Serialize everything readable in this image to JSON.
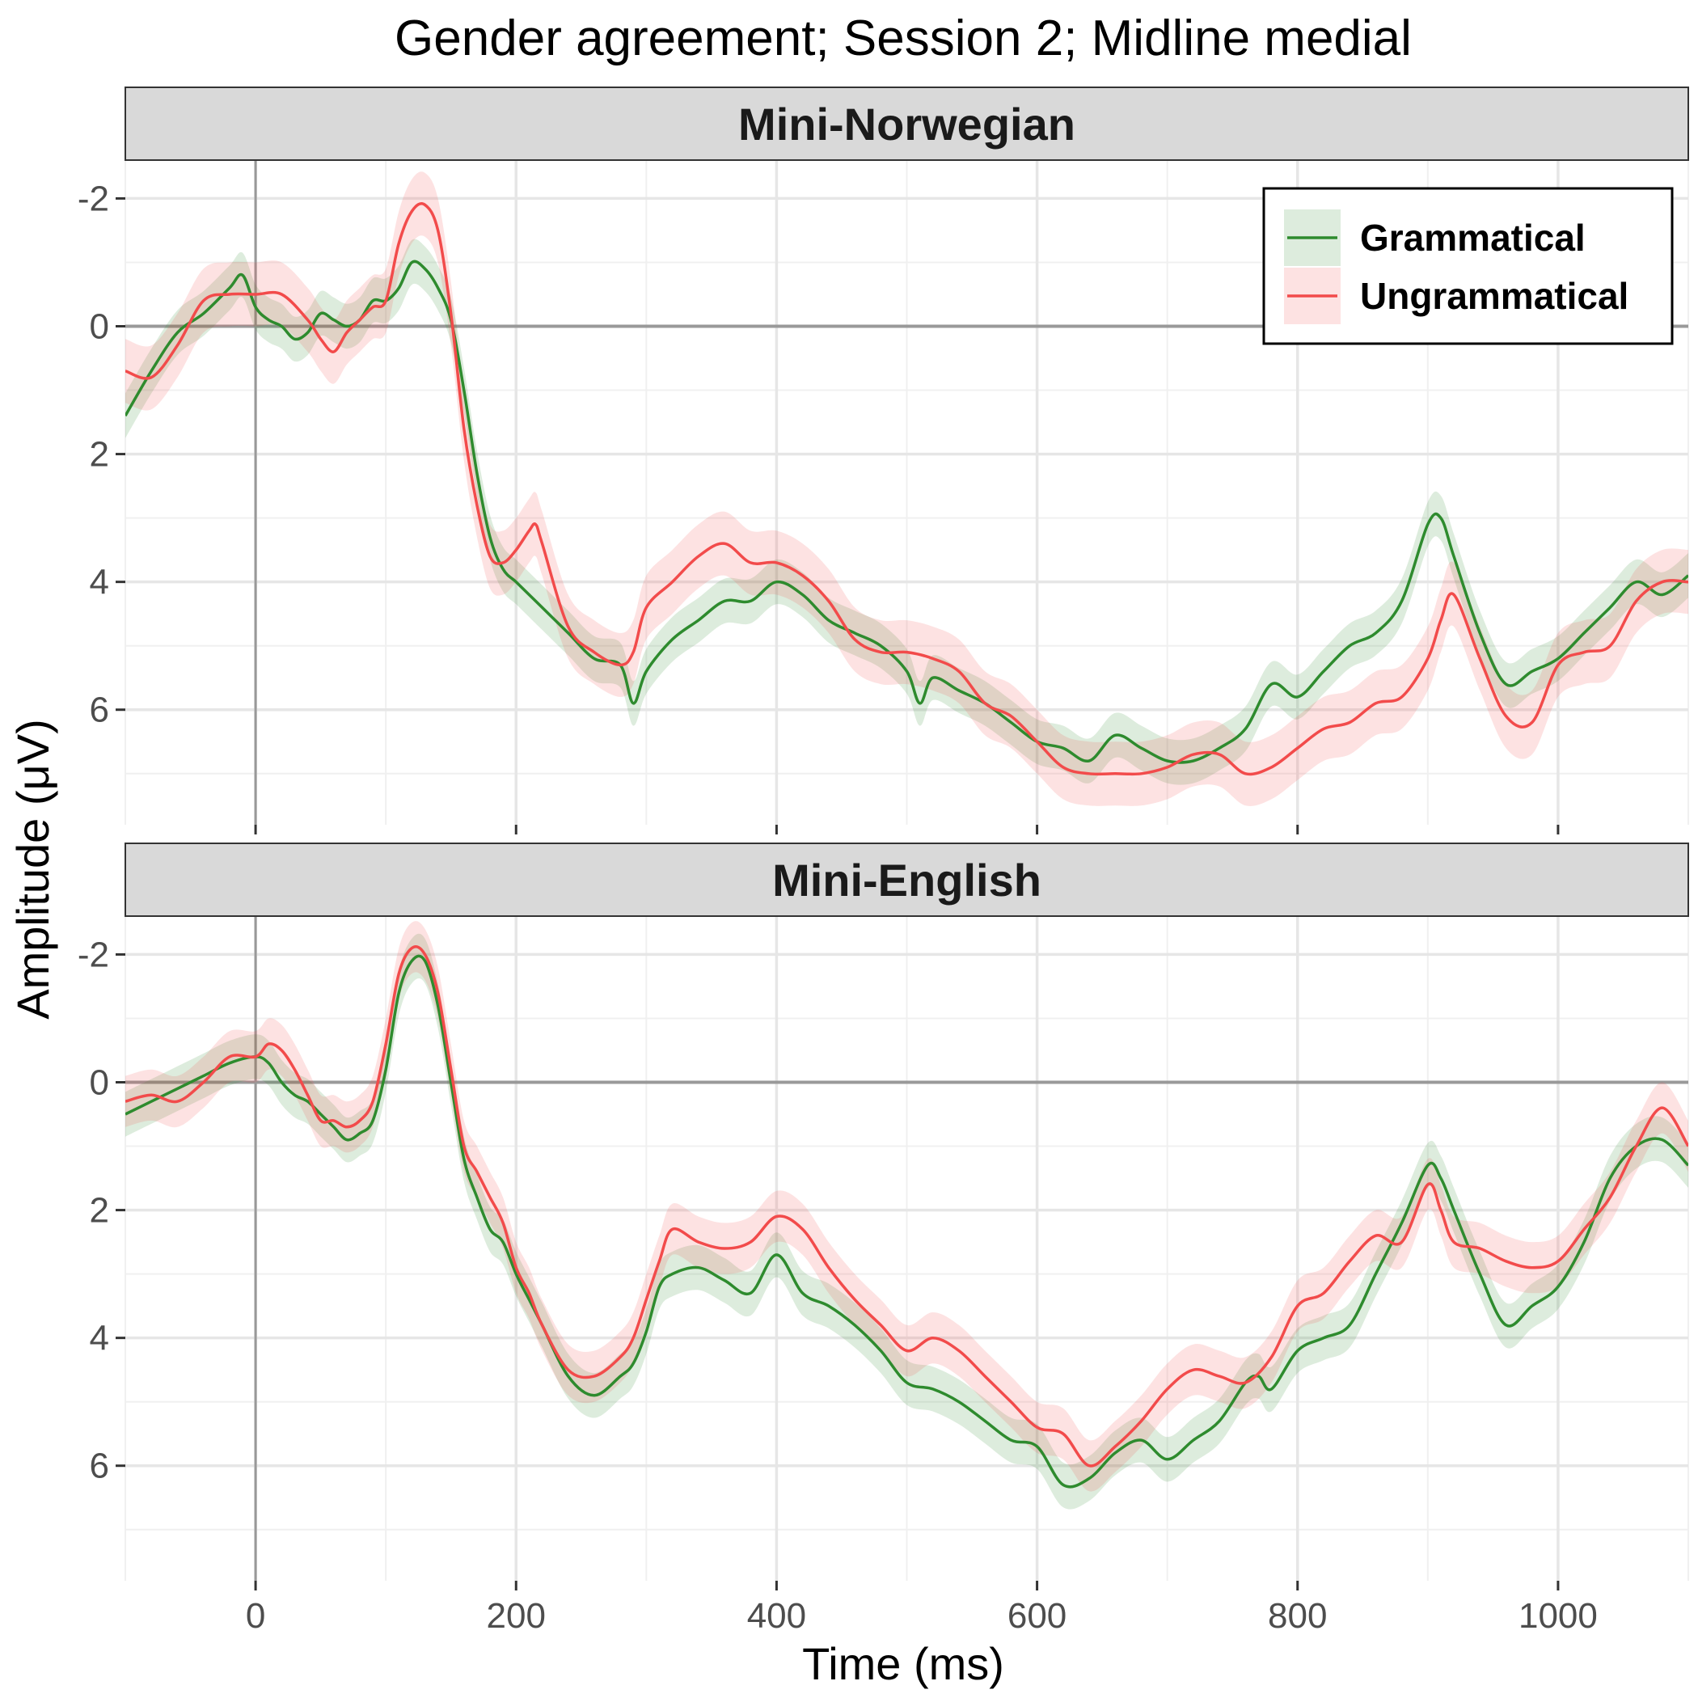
{
  "chart_data": {
    "type": "line",
    "title": "Gender agreement; Session 2; Midline medial",
    "xlabel": "Time (ms)",
    "ylabel": "Amplitude (μV)",
    "xlim": [
      -100,
      1100
    ],
    "ylim": [
      -2.6,
      7.8
    ],
    "y_reversed": true,
    "x_ticks": [
      0,
      200,
      400,
      600,
      800,
      1000
    ],
    "y_ticks": [
      -2,
      0,
      2,
      4,
      6
    ],
    "x_tick_labels": [
      "0",
      "200",
      "400",
      "600",
      "800",
      "1000"
    ],
    "y_tick_labels": [
      "-2",
      "0",
      "2",
      "4",
      "6"
    ],
    "grid": true,
    "legend": {
      "position": "top-right",
      "entries": [
        "Grammatical",
        "Ungrammatical"
      ]
    },
    "colors": {
      "Grammatical": "#2e8b2e",
      "Ungrammatical": "#f24b4b"
    },
    "panels": [
      {
        "label": "Mini-Norwegian",
        "series": [
          {
            "name": "Grammatical",
            "x": [
              -100,
              -80,
              -60,
              -40,
              -20,
              -10,
              0,
              10,
              20,
              30,
              40,
              50,
              60,
              70,
              80,
              90,
              100,
              110,
              120,
              130,
              140,
              150,
              160,
              170,
              180,
              190,
              200,
              210,
              220,
              240,
              260,
              280,
              290,
              300,
              320,
              340,
              360,
              380,
              400,
              420,
              440,
              460,
              480,
              500,
              510,
              520,
              540,
              560,
              580,
              600,
              620,
              640,
              660,
              680,
              700,
              720,
              740,
              760,
              780,
              800,
              820,
              840,
              860,
              880,
              900,
              910,
              920,
              940,
              960,
              980,
              1000,
              1020,
              1040,
              1060,
              1080,
              1100
            ],
            "y": [
              1.4,
              0.7,
              0.1,
              -0.2,
              -0.6,
              -0.8,
              -0.3,
              -0.1,
              0.0,
              0.2,
              0.1,
              -0.2,
              -0.1,
              0.0,
              -0.1,
              -0.4,
              -0.4,
              -0.6,
              -1.0,
              -0.9,
              -0.6,
              -0.1,
              1.0,
              2.3,
              3.3,
              3.8,
              4.0,
              4.2,
              4.4,
              4.8,
              5.2,
              5.3,
              5.9,
              5.4,
              4.9,
              4.6,
              4.3,
              4.3,
              4.0,
              4.2,
              4.6,
              4.8,
              5.0,
              5.4,
              5.9,
              5.5,
              5.7,
              5.9,
              6.2,
              6.5,
              6.6,
              6.8,
              6.4,
              6.6,
              6.8,
              6.8,
              6.6,
              6.3,
              5.6,
              5.8,
              5.4,
              5.0,
              4.8,
              4.3,
              3.1,
              3.0,
              3.6,
              4.8,
              5.6,
              5.4,
              5.2,
              4.8,
              4.4,
              4.0,
              4.2,
              3.9
            ],
            "ci": 0.35
          },
          {
            "name": "Ungrammatical",
            "x": [
              -100,
              -80,
              -60,
              -40,
              -20,
              0,
              20,
              40,
              50,
              60,
              70,
              80,
              90,
              100,
              110,
              120,
              130,
              140,
              150,
              160,
              170,
              180,
              190,
              200,
              210,
              215,
              220,
              240,
              260,
              280,
              290,
              300,
              320,
              340,
              360,
              380,
              400,
              420,
              440,
              460,
              480,
              500,
              520,
              540,
              560,
              580,
              600,
              620,
              640,
              660,
              680,
              700,
              720,
              740,
              760,
              780,
              800,
              820,
              840,
              860,
              880,
              900,
              910,
              920,
              940,
              960,
              980,
              1000,
              1020,
              1040,
              1060,
              1080,
              1100
            ],
            "y": [
              0.7,
              0.8,
              0.3,
              -0.4,
              -0.5,
              -0.5,
              -0.5,
              -0.1,
              0.2,
              0.4,
              0.1,
              -0.1,
              -0.3,
              -0.4,
              -1.3,
              -1.8,
              -1.9,
              -1.5,
              -0.2,
              1.6,
              2.8,
              3.6,
              3.7,
              3.5,
              3.2,
              3.1,
              3.4,
              4.7,
              5.1,
              5.3,
              5.1,
              4.4,
              4.0,
              3.6,
              3.4,
              3.7,
              3.7,
              3.9,
              4.3,
              4.9,
              5.1,
              5.1,
              5.2,
              5.4,
              5.9,
              6.1,
              6.5,
              6.9,
              7.0,
              7.0,
              7.0,
              6.9,
              6.7,
              6.7,
              7.0,
              6.9,
              6.6,
              6.3,
              6.2,
              5.9,
              5.8,
              5.2,
              4.6,
              4.2,
              5.2,
              6.1,
              6.2,
              5.3,
              5.1,
              5.0,
              4.3,
              4.0,
              4.0
            ],
            "ci": 0.5
          }
        ]
      },
      {
        "label": "Mini-English",
        "series": [
          {
            "name": "Grammatical",
            "x": [
              -100,
              -80,
              -60,
              -40,
              -20,
              0,
              10,
              20,
              30,
              40,
              50,
              60,
              70,
              80,
              90,
              100,
              110,
              120,
              130,
              140,
              150,
              160,
              170,
              180,
              190,
              200,
              210,
              220,
              240,
              260,
              280,
              290,
              300,
              310,
              320,
              340,
              360,
              380,
              400,
              420,
              440,
              460,
              480,
              500,
              520,
              540,
              560,
              580,
              600,
              620,
              640,
              660,
              680,
              700,
              720,
              740,
              760,
              770,
              780,
              800,
              820,
              840,
              860,
              880,
              900,
              910,
              920,
              940,
              960,
              980,
              1000,
              1020,
              1040,
              1060,
              1080,
              1100
            ],
            "y": [
              0.5,
              0.3,
              0.1,
              -0.1,
              -0.3,
              -0.4,
              -0.3,
              0.0,
              0.2,
              0.3,
              0.5,
              0.7,
              0.9,
              0.8,
              0.6,
              -0.2,
              -1.4,
              -1.9,
              -1.9,
              -1.2,
              0.0,
              1.2,
              1.8,
              2.3,
              2.5,
              3.0,
              3.4,
              3.8,
              4.6,
              4.9,
              4.6,
              4.4,
              3.9,
              3.2,
              3.0,
              2.9,
              3.1,
              3.3,
              2.7,
              3.3,
              3.5,
              3.8,
              4.2,
              4.7,
              4.8,
              5.0,
              5.3,
              5.6,
              5.7,
              6.3,
              6.2,
              5.8,
              5.6,
              5.9,
              5.6,
              5.3,
              4.7,
              4.6,
              4.8,
              4.2,
              4.0,
              3.8,
              3.0,
              2.2,
              1.3,
              1.5,
              2.0,
              3.0,
              3.8,
              3.5,
              3.2,
              2.5,
              1.5,
              1.0,
              0.9,
              1.3
            ],
            "ci": 0.35
          },
          {
            "name": "Ungrammatical",
            "x": [
              -100,
              -80,
              -60,
              -40,
              -20,
              0,
              10,
              20,
              30,
              40,
              50,
              60,
              70,
              80,
              90,
              100,
              110,
              120,
              130,
              140,
              150,
              160,
              170,
              180,
              190,
              200,
              210,
              220,
              240,
              260,
              280,
              290,
              300,
              310,
              320,
              340,
              360,
              380,
              400,
              420,
              440,
              460,
              480,
              500,
              520,
              540,
              560,
              580,
              600,
              620,
              640,
              660,
              680,
              700,
              720,
              740,
              760,
              780,
              800,
              820,
              840,
              860,
              880,
              900,
              910,
              920,
              940,
              960,
              980,
              1000,
              1020,
              1040,
              1060,
              1080,
              1100
            ],
            "y": [
              0.3,
              0.2,
              0.3,
              0.0,
              -0.4,
              -0.4,
              -0.6,
              -0.5,
              -0.2,
              0.2,
              0.6,
              0.6,
              0.7,
              0.6,
              0.3,
              -0.6,
              -1.7,
              -2.1,
              -2.0,
              -1.4,
              -0.2,
              1.0,
              1.4,
              1.8,
              2.2,
              2.9,
              3.3,
              3.8,
              4.5,
              4.6,
              4.3,
              4.0,
              3.4,
              2.8,
              2.3,
              2.5,
              2.6,
              2.5,
              2.1,
              2.3,
              2.9,
              3.4,
              3.8,
              4.2,
              4.0,
              4.2,
              4.6,
              5.0,
              5.4,
              5.5,
              6.0,
              5.7,
              5.3,
              4.8,
              4.5,
              4.6,
              4.7,
              4.3,
              3.5,
              3.3,
              2.8,
              2.4,
              2.5,
              1.6,
              2.0,
              2.5,
              2.6,
              2.8,
              2.9,
              2.8,
              2.3,
              1.8,
              1.0,
              0.4,
              1.0
            ],
            "ci": 0.4
          }
        ]
      }
    ]
  }
}
